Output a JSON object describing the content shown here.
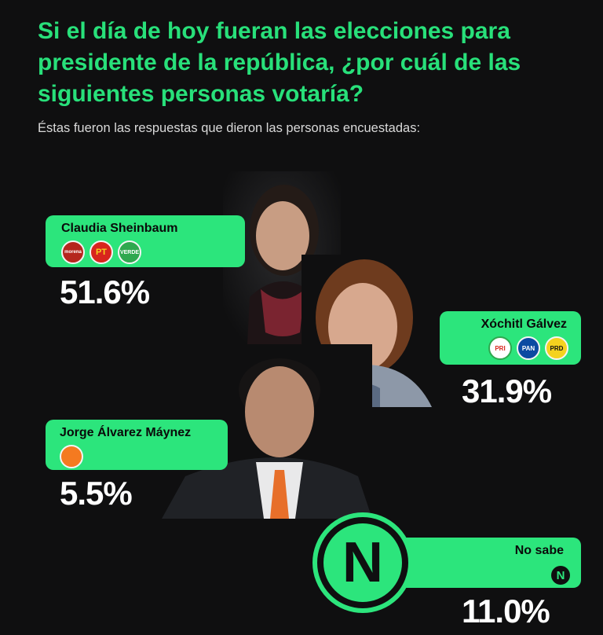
{
  "header": {
    "title": "Si el día de hoy fueran las elecciones para presidente de la república, ¿por cuál de las siguientes personas votaría?",
    "subtitle": "Éstas fueron las respuestas que dieron las personas encuestadas:"
  },
  "candidates": [
    {
      "name": "Claudia Sheinbaum",
      "percent": "51.6%",
      "parties": [
        "morena",
        "PT",
        "VERDE"
      ]
    },
    {
      "name": "Xóchitl Gálvez",
      "percent": "31.9%",
      "parties": [
        "PRI",
        "PAN",
        "PRD"
      ]
    },
    {
      "name": "Jorge Álvarez Máynez",
      "percent": "5.5%",
      "parties": [
        "MOVIMIENTO CIUDADANO"
      ]
    },
    {
      "name": "No sabe",
      "percent": "11.0%",
      "logo_letter": "N"
    }
  ],
  "colors": {
    "accent": "#2ce57c",
    "background": "#0f0f10",
    "morena": "#b5261e",
    "pt": "#d8251d",
    "verde": "#2fa84f",
    "pri": "#ffffff",
    "pan": "#0b4aa2",
    "prd": "#f4d21f",
    "mc": "#f47a20"
  },
  "icons": [
    "morena-logo",
    "pt-logo",
    "verde-logo",
    "pri-logo",
    "pan-logo",
    "prd-logo",
    "mc-logo",
    "n-logo"
  ]
}
